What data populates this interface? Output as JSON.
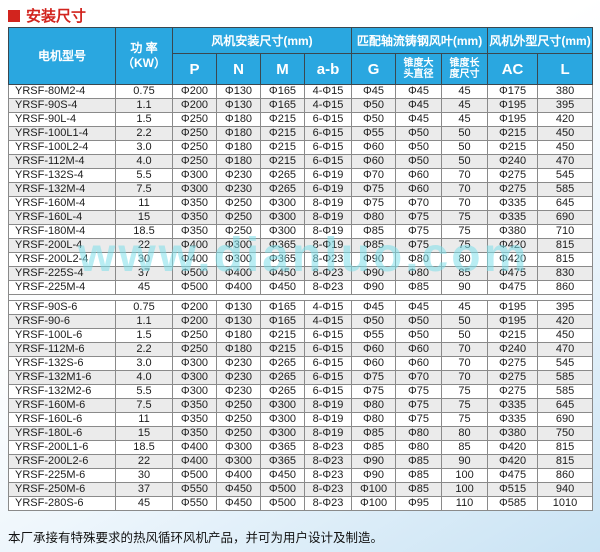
{
  "page": {
    "title": "安装尺寸",
    "watermark": "www.dianluo.com",
    "footer_note": "本厂承接有特殊要求的热风循环风机产品，并可为用户设计及制造。"
  },
  "colors": {
    "header_blue": "#2aa7e0",
    "title_red": "#d2241e",
    "stripe_gray": "#ebebeb",
    "watermark_cyan": "#7fe0ea"
  },
  "table": {
    "group_headers": [
      "电机型号",
      "功 率\n（KW）",
      "风机安装尺寸(mm)",
      "匹配轴流铸钢风叶(mm)",
      "风机外型尺寸(mm)"
    ],
    "sub_headers": [
      "P",
      "N",
      "M",
      "a-b",
      "G",
      "锥度大\n头直径",
      "锥度长\n度尺寸",
      "AC",
      "L"
    ],
    "rows_4pole": [
      [
        "YRSF-80M2-4",
        "0.75",
        "Φ200",
        "Φ130",
        "Φ165",
        "4-Φ15",
        "Φ45",
        "Φ45",
        "45",
        "Φ175",
        "380"
      ],
      [
        "YRSF-90S-4",
        "1.1",
        "Φ200",
        "Φ130",
        "Φ165",
        "4-Φ15",
        "Φ50",
        "Φ45",
        "45",
        "Φ195",
        "395"
      ],
      [
        "YRSF-90L-4",
        "1.5",
        "Φ250",
        "Φ180",
        "Φ215",
        "6-Φ15",
        "Φ50",
        "Φ45",
        "45",
        "Φ195",
        "420"
      ],
      [
        "YRSF-100L1-4",
        "2.2",
        "Φ250",
        "Φ180",
        "Φ215",
        "6-Φ15",
        "Φ55",
        "Φ50",
        "50",
        "Φ215",
        "450"
      ],
      [
        "YRSF-100L2-4",
        "3.0",
        "Φ250",
        "Φ180",
        "Φ215",
        "6-Φ15",
        "Φ60",
        "Φ50",
        "50",
        "Φ215",
        "450"
      ],
      [
        "YRSF-112M-4",
        "4.0",
        "Φ250",
        "Φ180",
        "Φ215",
        "6-Φ15",
        "Φ60",
        "Φ50",
        "50",
        "Φ240",
        "470"
      ],
      [
        "YRSF-132S-4",
        "5.5",
        "Φ300",
        "Φ230",
        "Φ265",
        "6-Φ19",
        "Φ70",
        "Φ60",
        "70",
        "Φ275",
        "545"
      ],
      [
        "YRSF-132M-4",
        "7.5",
        "Φ300",
        "Φ230",
        "Φ265",
        "6-Φ19",
        "Φ75",
        "Φ60",
        "70",
        "Φ275",
        "585"
      ],
      [
        "YRSF-160M-4",
        "11",
        "Φ350",
        "Φ250",
        "Φ300",
        "8-Φ19",
        "Φ75",
        "Φ70",
        "70",
        "Φ335",
        "645"
      ],
      [
        "YRSF-160L-4",
        "15",
        "Φ350",
        "Φ250",
        "Φ300",
        "8-Φ19",
        "Φ80",
        "Φ75",
        "75",
        "Φ335",
        "690"
      ],
      [
        "YRSF-180M-4",
        "18.5",
        "Φ350",
        "Φ250",
        "Φ300",
        "8-Φ19",
        "Φ85",
        "Φ75",
        "75",
        "Φ380",
        "710"
      ],
      [
        "YRSF-200L-4",
        "22",
        "Φ400",
        "Φ300",
        "Φ365",
        "8-Φ19",
        "Φ85",
        "Φ75",
        "75",
        "Φ420",
        "815"
      ],
      [
        "YRSF-200L2-4",
        "30",
        "Φ400",
        "Φ300",
        "Φ365",
        "8-Φ23",
        "Φ90",
        "Φ80",
        "80",
        "Φ420",
        "815"
      ],
      [
        "YRSF-225S-4",
        "37",
        "Φ500",
        "Φ400",
        "Φ450",
        "8-Φ23",
        "Φ90",
        "Φ80",
        "85",
        "Φ475",
        "830"
      ],
      [
        "YRSF-225M-4",
        "45",
        "Φ500",
        "Φ400",
        "Φ450",
        "8-Φ23",
        "Φ90",
        "Φ85",
        "90",
        "Φ475",
        "860"
      ]
    ],
    "rows_6pole": [
      [
        "YRSF-90S-6",
        "0.75",
        "Φ200",
        "Φ130",
        "Φ165",
        "4-Φ15",
        "Φ45",
        "Φ45",
        "45",
        "Φ195",
        "395"
      ],
      [
        "YRSF-90-6",
        "1.1",
        "Φ200",
        "Φ130",
        "Φ165",
        "4-Φ15",
        "Φ50",
        "Φ50",
        "50",
        "Φ195",
        "420"
      ],
      [
        "YRSF-100L-6",
        "1.5",
        "Φ250",
        "Φ180",
        "Φ215",
        "6-Φ15",
        "Φ55",
        "Φ50",
        "50",
        "Φ215",
        "450"
      ],
      [
        "YRSF-112M-6",
        "2.2",
        "Φ250",
        "Φ180",
        "Φ215",
        "6-Φ15",
        "Φ60",
        "Φ60",
        "70",
        "Φ240",
        "470"
      ],
      [
        "YRSF-132S-6",
        "3.0",
        "Φ300",
        "Φ230",
        "Φ265",
        "6-Φ15",
        "Φ60",
        "Φ60",
        "70",
        "Φ275",
        "545"
      ],
      [
        "YRSF-132M1-6",
        "4.0",
        "Φ300",
        "Φ230",
        "Φ265",
        "6-Φ15",
        "Φ75",
        "Φ70",
        "70",
        "Φ275",
        "585"
      ],
      [
        "YRSF-132M2-6",
        "5.5",
        "Φ300",
        "Φ230",
        "Φ265",
        "6-Φ15",
        "Φ75",
        "Φ75",
        "75",
        "Φ275",
        "585"
      ],
      [
        "YRSF-160M-6",
        "7.5",
        "Φ350",
        "Φ250",
        "Φ300",
        "8-Φ19",
        "Φ80",
        "Φ75",
        "75",
        "Φ335",
        "645"
      ],
      [
        "YRSF-160L-6",
        "11",
        "Φ350",
        "Φ250",
        "Φ300",
        "8-Φ19",
        "Φ80",
        "Φ75",
        "75",
        "Φ335",
        "690"
      ],
      [
        "YRSF-180L-6",
        "15",
        "Φ350",
        "Φ250",
        "Φ300",
        "8-Φ19",
        "Φ85",
        "Φ80",
        "80",
        "Φ380",
        "750"
      ],
      [
        "YRSF-200L1-6",
        "18.5",
        "Φ400",
        "Φ300",
        "Φ365",
        "8-Φ23",
        "Φ85",
        "Φ80",
        "85",
        "Φ420",
        "815"
      ],
      [
        "YRSF-200L2-6",
        "22",
        "Φ400",
        "Φ300",
        "Φ365",
        "8-Φ23",
        "Φ90",
        "Φ85",
        "90",
        "Φ420",
        "815"
      ],
      [
        "YRSF-225M-6",
        "30",
        "Φ500",
        "Φ400",
        "Φ450",
        "8-Φ23",
        "Φ90",
        "Φ85",
        "100",
        "Φ475",
        "860"
      ],
      [
        "YRSF-250M-6",
        "37",
        "Φ550",
        "Φ450",
        "Φ500",
        "8-Φ23",
        "Φ100",
        "Φ85",
        "100",
        "Φ515",
        "940"
      ],
      [
        "YRSF-280S-6",
        "45",
        "Φ550",
        "Φ450",
        "Φ500",
        "8-Φ23",
        "Φ100",
        "Φ95",
        "110",
        "Φ585",
        "1010"
      ]
    ]
  }
}
